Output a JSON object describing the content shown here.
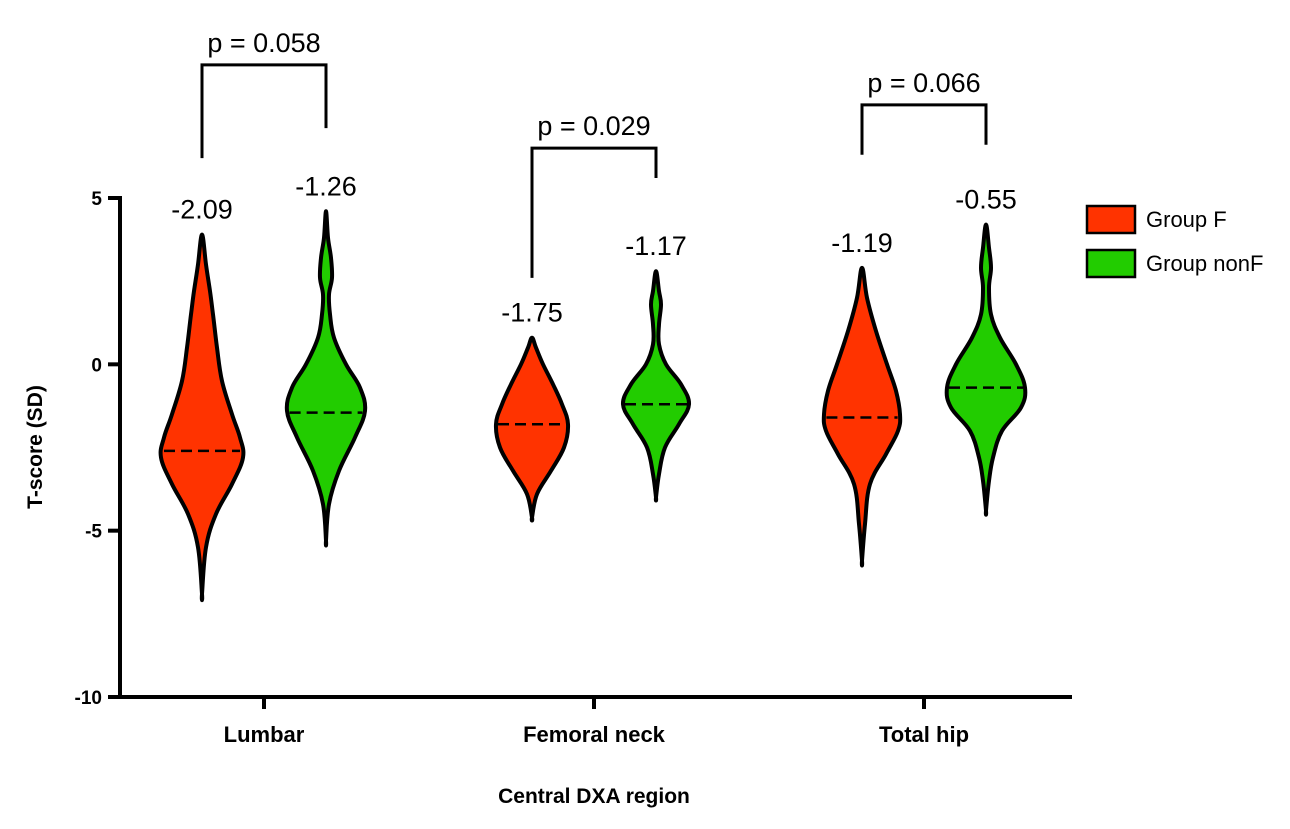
{
  "chart_data": {
    "type": "violin",
    "xlabel": "Central DXA region",
    "ylabel": "T-score (SD)",
    "ylim": [
      -10,
      5
    ],
    "yticks": [
      5,
      0,
      -5,
      -10
    ],
    "categories": [
      "Lumbar",
      "Femoral neck",
      "Total hip"
    ],
    "legend": "right",
    "series": [
      {
        "name": "Group F",
        "color": "#ff3300",
        "medians": [
          -2.6,
          -1.8,
          -1.6
        ],
        "labels": [
          "-2.09",
          "-1.75",
          "-1.19"
        ],
        "shapes": [
          [
            [
              -6.9,
              0
            ],
            [
              -5.5,
              4
            ],
            [
              -4.5,
              14
            ],
            [
              -3.6,
              30
            ],
            [
              -2.8,
              41
            ],
            [
              -2.2,
              38
            ],
            [
              -1.5,
              30
            ],
            [
              -0.5,
              20
            ],
            [
              0.5,
              15
            ],
            [
              1.5,
              11
            ],
            [
              2.2,
              8
            ],
            [
              3.0,
              4
            ],
            [
              3.9,
              0
            ]
          ],
          [
            [
              -4.6,
              0
            ],
            [
              -3.9,
              5
            ],
            [
              -3.2,
              19
            ],
            [
              -2.5,
              32
            ],
            [
              -1.8,
              36
            ],
            [
              -1.2,
              30
            ],
            [
              -0.6,
              21
            ],
            [
              0.0,
              11
            ],
            [
              0.5,
              4
            ],
            [
              0.8,
              0
            ]
          ],
          [
            [
              -5.9,
              0
            ],
            [
              -4.8,
              3
            ],
            [
              -3.6,
              8
            ],
            [
              -2.7,
              24
            ],
            [
              -2.0,
              36
            ],
            [
              -1.5,
              38
            ],
            [
              -0.8,
              34
            ],
            [
              0.0,
              25
            ],
            [
              1.0,
              14
            ],
            [
              2.0,
              5
            ],
            [
              2.9,
              0
            ]
          ]
        ]
      },
      {
        "name": "Group nonF",
        "color": "#22cc00",
        "medians": [
          -1.45,
          -1.2,
          -0.7
        ],
        "labels": [
          "-1.26",
          "-1.17",
          "-0.55"
        ],
        "shapes": [
          [
            [
              -5.3,
              0
            ],
            [
              -4.2,
              3
            ],
            [
              -3.2,
              13
            ],
            [
              -2.2,
              29
            ],
            [
              -1.4,
              39
            ],
            [
              -0.7,
              34
            ],
            [
              0.0,
              20
            ],
            [
              0.8,
              8
            ],
            [
              1.5,
              4
            ],
            [
              2.1,
              3
            ],
            [
              2.6,
              6
            ],
            [
              3.2,
              5
            ],
            [
              3.8,
              2
            ],
            [
              4.6,
              0
            ]
          ],
          [
            [
              -4.0,
              0
            ],
            [
              -3.3,
              3
            ],
            [
              -2.5,
              9
            ],
            [
              -1.8,
              23
            ],
            [
              -1.2,
              33
            ],
            [
              -0.6,
              25
            ],
            [
              0.0,
              10
            ],
            [
              0.6,
              3
            ],
            [
              1.2,
              3
            ],
            [
              1.8,
              5
            ],
            [
              2.2,
              3
            ],
            [
              2.8,
              0
            ]
          ],
          [
            [
              -4.4,
              0
            ],
            [
              -3.5,
              3
            ],
            [
              -2.8,
              7
            ],
            [
              -2.0,
              16
            ],
            [
              -1.3,
              35
            ],
            [
              -0.7,
              39
            ],
            [
              0.0,
              30
            ],
            [
              0.8,
              14
            ],
            [
              1.5,
              5
            ],
            [
              2.3,
              3
            ],
            [
              2.9,
              5
            ],
            [
              3.5,
              3
            ],
            [
              4.2,
              0
            ]
          ]
        ]
      }
    ],
    "comparisons": [
      {
        "category": "Lumbar",
        "p_label": "p = 0.058",
        "top": 9.0,
        "left_end": 6.2,
        "right_end": 7.1
      },
      {
        "category": "Femoral neck",
        "p_label": "p = 0.029",
        "top": 6.5,
        "left_end": 2.6,
        "right_end": 5.6
      },
      {
        "category": "Total hip",
        "p_label": "p = 0.066",
        "top": 7.8,
        "left_end": 6.3,
        "right_end": 6.6
      }
    ]
  }
}
